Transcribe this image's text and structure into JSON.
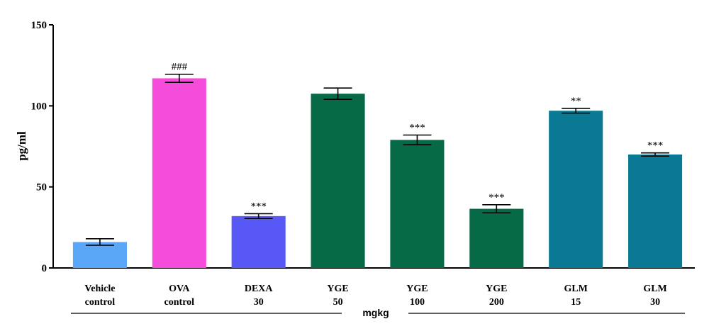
{
  "chart_data": {
    "type": "bar",
    "ylabel": "pg/ml",
    "ylim": [
      0,
      150
    ],
    "yticks": [
      0,
      50,
      100,
      150
    ],
    "unit_label": "mgkg",
    "grid": false,
    "bars": [
      {
        "label": [
          "Vehicle",
          "control"
        ],
        "value": 16,
        "error": 2,
        "annotation": "",
        "color": "#5aa6f7"
      },
      {
        "label": [
          "OVA",
          "control"
        ],
        "value": 117,
        "error": 2.5,
        "annotation": "###",
        "color": "#f64cdb"
      },
      {
        "label": [
          "DEXA",
          "30"
        ],
        "value": 32,
        "error": 1.5,
        "annotation": "***",
        "color": "#5758f6"
      },
      {
        "label": [
          "YGE",
          "50"
        ],
        "value": 107.5,
        "error": 3.5,
        "annotation": "",
        "color": "#076a46"
      },
      {
        "label": [
          "YGE",
          "100"
        ],
        "value": 79,
        "error": 3,
        "annotation": "***",
        "color": "#076a46"
      },
      {
        "label": [
          "YGE",
          "200"
        ],
        "value": 36.5,
        "error": 2.5,
        "annotation": "***",
        "color": "#076a46"
      },
      {
        "label": [
          "GLM",
          "15"
        ],
        "value": 97,
        "error": 1.5,
        "annotation": "**",
        "color": "#0a7a94"
      },
      {
        "label": [
          "GLM",
          "30"
        ],
        "value": 70,
        "error": 1,
        "annotation": "***",
        "color": "#0a7a94"
      }
    ]
  }
}
